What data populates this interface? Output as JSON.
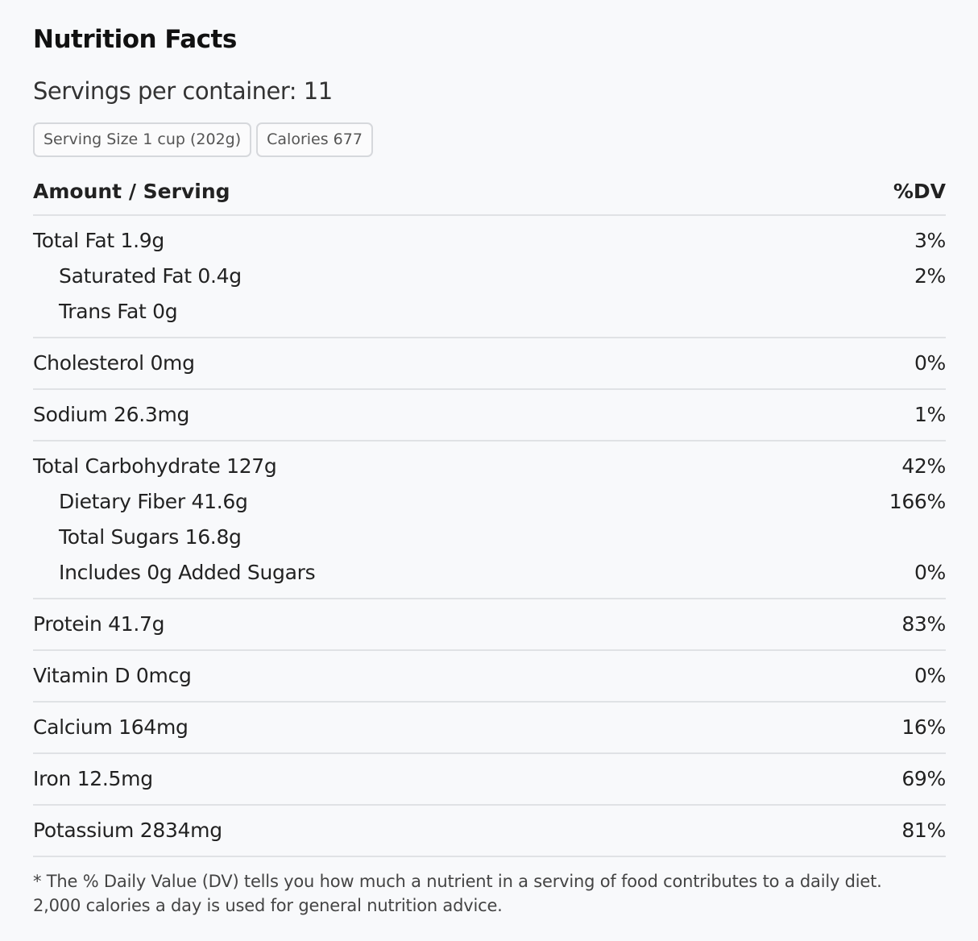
{
  "header": {
    "title": "Nutrition Facts",
    "servings": "Servings per container: 11",
    "badges": [
      "Serving Size 1 cup (202g)",
      "Calories 677"
    ]
  },
  "table": {
    "columns": [
      "Amount / Serving",
      "%DV"
    ],
    "groups": [
      {
        "main": {
          "label": "Total Fat 1.9g",
          "dv": "3%"
        },
        "subs": [
          {
            "label": "Saturated Fat 0.4g",
            "dv": "2%"
          },
          {
            "label": "Trans Fat 0g"
          }
        ]
      },
      {
        "main": {
          "label": "Cholesterol 0mg",
          "dv": "0%"
        },
        "subs": []
      },
      {
        "main": {
          "label": "Sodium 26.3mg",
          "dv": "1%"
        },
        "subs": []
      },
      {
        "main": {
          "label": "Total Carbohydrate 127g",
          "dv": "42%"
        },
        "subs": [
          {
            "label": "Dietary Fiber 41.6g",
            "dv": "166%"
          },
          {
            "label": "Total Sugars 16.8g"
          },
          {
            "label": "Includes 0g Added Sugars",
            "dv": "0%"
          }
        ]
      },
      {
        "main": {
          "label": "Protein 41.7g",
          "dv": "83%"
        },
        "subs": []
      },
      {
        "main": {
          "label": "Vitamin D 0mcg",
          "dv": "0%"
        },
        "subs": []
      },
      {
        "main": {
          "label": "Calcium 164mg",
          "dv": "16%"
        },
        "subs": []
      },
      {
        "main": {
          "label": "Iron 12.5mg",
          "dv": "69%"
        },
        "subs": []
      },
      {
        "main": {
          "label": "Potassium 2834mg",
          "dv": "81%"
        },
        "subs": []
      }
    ]
  },
  "footnote": [
    "* The % Daily Value (DV) tells you how much a nutrient in a serving of food contributes to a daily diet.",
    "2,000 calories a day is used for general nutrition advice."
  ]
}
